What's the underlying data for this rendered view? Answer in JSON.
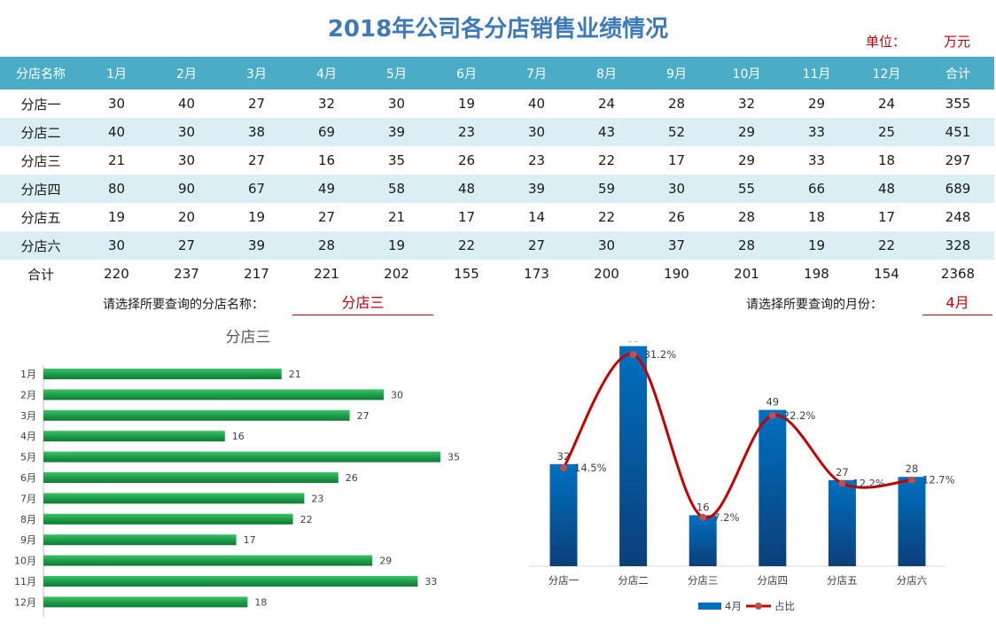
{
  "title": "2018年公司各分店销售业绩情况",
  "unit": {
    "label": "单位：",
    "value": "万元"
  },
  "table": {
    "headers": [
      "分店名称",
      "1月",
      "2月",
      "3月",
      "4月",
      "5月",
      "6月",
      "7月",
      "8月",
      "9月",
      "10月",
      "11月",
      "12月",
      "合计"
    ],
    "rows": [
      [
        "分店一",
        "30",
        "40",
        "27",
        "32",
        "30",
        "19",
        "40",
        "24",
        "28",
        "32",
        "29",
        "24",
        "355"
      ],
      [
        "分店二",
        "40",
        "30",
        "38",
        "69",
        "39",
        "23",
        "30",
        "43",
        "52",
        "29",
        "33",
        "25",
        "451"
      ],
      [
        "分店三",
        "21",
        "30",
        "27",
        "16",
        "35",
        "26",
        "23",
        "22",
        "17",
        "29",
        "33",
        "18",
        "297"
      ],
      [
        "分店四",
        "80",
        "90",
        "67",
        "49",
        "58",
        "48",
        "39",
        "59",
        "30",
        "55",
        "66",
        "48",
        "689"
      ],
      [
        "分店五",
        "19",
        "20",
        "19",
        "27",
        "21",
        "17",
        "14",
        "22",
        "26",
        "28",
        "18",
        "17",
        "248"
      ],
      [
        "分店六",
        "30",
        "27",
        "39",
        "28",
        "19",
        "22",
        "27",
        "30",
        "37",
        "28",
        "19",
        "22",
        "328"
      ],
      [
        "合计",
        "220",
        "237",
        "217",
        "221",
        "202",
        "155",
        "173",
        "200",
        "190",
        "201",
        "198",
        "154",
        "2368"
      ]
    ]
  },
  "store_selector": {
    "label": "请选择所要查询的分店名称：",
    "value": "分店三"
  },
  "month_selector": {
    "label": "请选择所要查询的月份：",
    "value": "4月"
  },
  "colors": {
    "title": "#3f7ab8",
    "header_bg": "#4bacc6",
    "stripe": "#daeef3",
    "accent_red": "#c0000c",
    "hbar_green": "#1e9e4a",
    "column_blue": "#0070c0",
    "line_red": "#c00000"
  },
  "chart_data": [
    {
      "type": "bar",
      "orientation": "horizontal",
      "title": "分店三",
      "categories": [
        "1月",
        "2月",
        "3月",
        "4月",
        "5月",
        "6月",
        "7月",
        "8月",
        "9月",
        "10月",
        "11月",
        "12月"
      ],
      "values": [
        21,
        30,
        27,
        16,
        35,
        26,
        23,
        22,
        17,
        29,
        33,
        18
      ],
      "data_labels": true,
      "grid": false,
      "legend": "none"
    },
    {
      "type": "bar",
      "secondary_type": "line",
      "categories": [
        "分店一",
        "分店二",
        "分店三",
        "分店四",
        "分店五",
        "分店六"
      ],
      "series": [
        {
          "name": "4月",
          "type": "bar",
          "values": [
            32,
            69,
            16,
            49,
            27,
            28
          ]
        },
        {
          "name": "占比",
          "type": "line",
          "smooth": true,
          "values": [
            14.5,
            31.2,
            7.2,
            22.2,
            12.2,
            12.7
          ],
          "labels": [
            "14.5%",
            "31.2%",
            "7.2%",
            "22.2%",
            "12.2%",
            "12.7%"
          ]
        }
      ],
      "data_labels": true,
      "grid": false,
      "legend": "bottom"
    }
  ]
}
